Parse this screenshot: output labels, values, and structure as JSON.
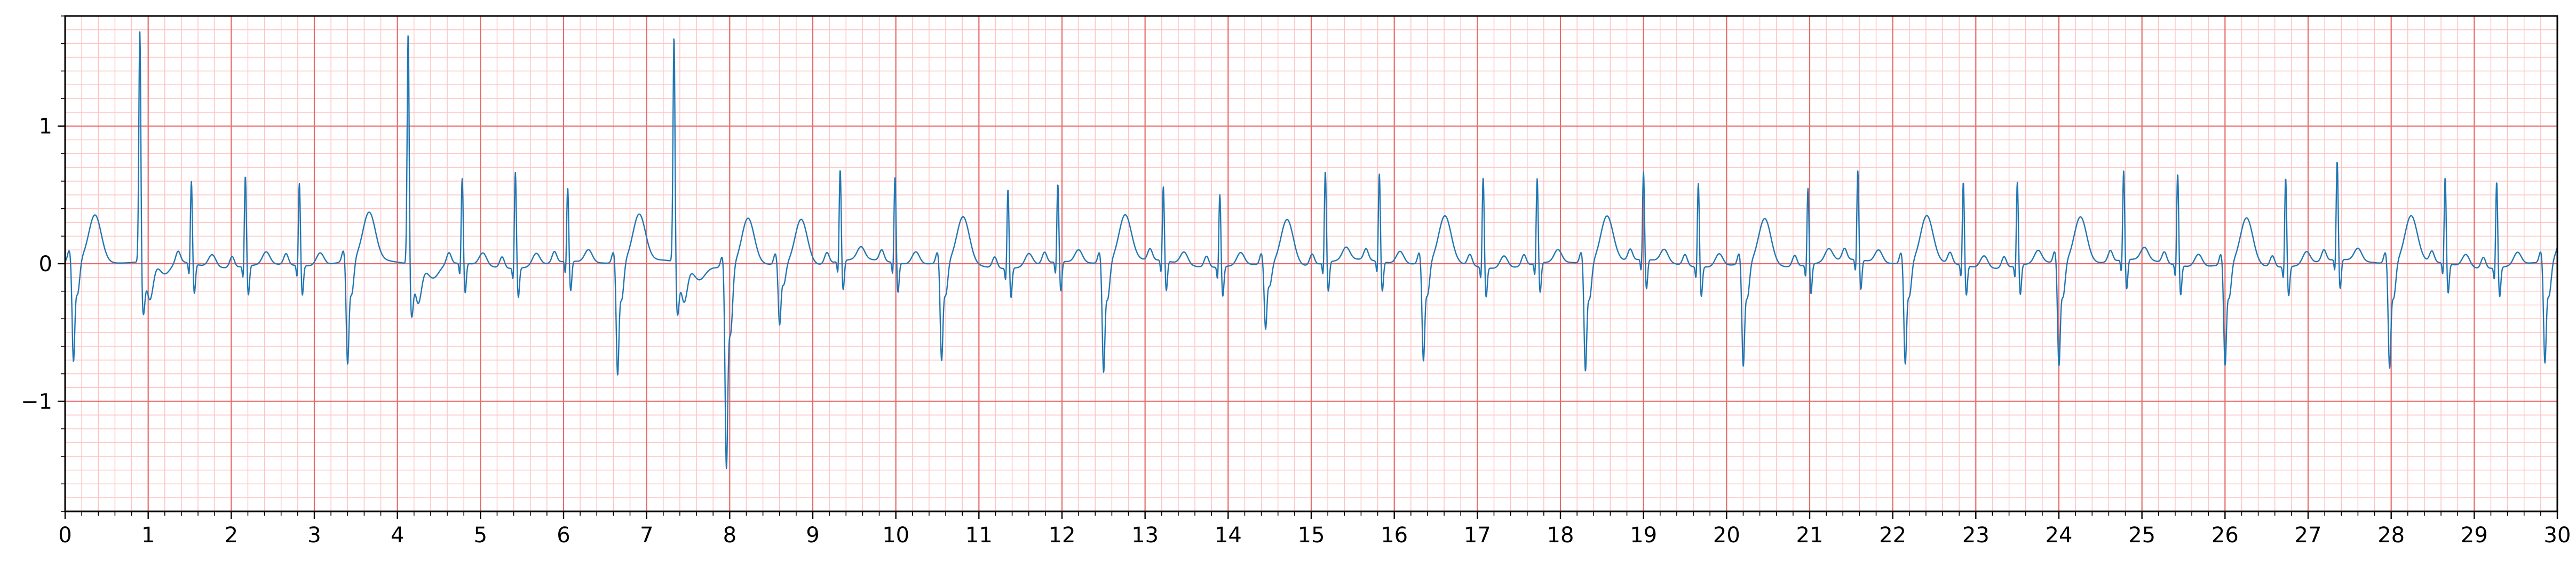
{
  "chart_data": {
    "type": "line",
    "title": "",
    "xlabel": "",
    "ylabel": "",
    "xlim": [
      0,
      30
    ],
    "ylim": [
      -1.8,
      1.8
    ],
    "x_ticks": [
      0,
      1,
      2,
      3,
      4,
      5,
      6,
      7,
      8,
      9,
      10,
      11,
      12,
      13,
      14,
      15,
      16,
      17,
      18,
      19,
      20,
      21,
      22,
      23,
      24,
      25,
      26,
      27,
      28,
      29,
      30
    ],
    "x_tick_labels": [
      "0",
      "1",
      "2",
      "3",
      "4",
      "5",
      "6",
      "7",
      "8",
      "9",
      "10",
      "11",
      "12",
      "13",
      "14",
      "15",
      "16",
      "17",
      "18",
      "19",
      "20",
      "21",
      "22",
      "23",
      "24",
      "25",
      "26",
      "27",
      "28",
      "29",
      "30"
    ],
    "y_ticks": [
      -1,
      0,
      1
    ],
    "y_tick_labels": [
      "−1",
      "0",
      "1"
    ],
    "grid": true,
    "grid_major_color": "#e86a6a",
    "grid_minor_color": "#ffc2c2",
    "line_color": "#1f77b4",
    "series": [
      {
        "beats": [
          {
            "t": 0.1,
            "type": "pvc",
            "amp": -0.7
          },
          {
            "t": 0.9,
            "type": "ectopic",
            "amp": 1.72
          },
          {
            "t": 1.52,
            "type": "normal",
            "amp": 0.61
          },
          {
            "t": 2.17,
            "type": "normal",
            "amp": 0.67
          },
          {
            "t": 2.82,
            "type": "normal",
            "amp": 0.61
          },
          {
            "t": 3.4,
            "type": "pvc",
            "amp": -0.72
          },
          {
            "t": 4.13,
            "type": "ectopic",
            "amp": 1.72
          },
          {
            "t": 4.78,
            "type": "normal",
            "amp": 0.63
          },
          {
            "t": 5.42,
            "type": "normal",
            "amp": 0.71
          },
          {
            "t": 6.05,
            "type": "normal",
            "amp": 0.55
          },
          {
            "t": 6.65,
            "type": "pvc",
            "amp": -0.78
          },
          {
            "t": 7.33,
            "type": "ectopic",
            "amp": 1.68
          },
          {
            "t": 7.96,
            "type": "pvc",
            "amp": -1.4
          },
          {
            "t": 8.6,
            "type": "pvc",
            "amp": -0.42
          },
          {
            "t": 9.33,
            "type": "normal",
            "amp": 0.68
          },
          {
            "t": 9.99,
            "type": "normal",
            "amp": 0.64
          },
          {
            "t": 10.55,
            "type": "pvc",
            "amp": -0.68
          },
          {
            "t": 11.35,
            "type": "normal",
            "amp": 0.59
          },
          {
            "t": 11.95,
            "type": "normal",
            "amp": 0.58
          },
          {
            "t": 12.5,
            "type": "pvc",
            "amp": -0.76
          },
          {
            "t": 13.22,
            "type": "normal",
            "amp": 0.55
          },
          {
            "t": 13.9,
            "type": "normal",
            "amp": 0.54
          },
          {
            "t": 14.45,
            "type": "pvc",
            "amp": -0.45
          },
          {
            "t": 15.17,
            "type": "normal",
            "amp": 0.68
          },
          {
            "t": 15.82,
            "type": "normal",
            "amp": 0.65
          },
          {
            "t": 16.35,
            "type": "pvc",
            "amp": -0.68
          },
          {
            "t": 17.07,
            "type": "normal",
            "amp": 0.67
          },
          {
            "t": 17.72,
            "type": "normal",
            "amp": 0.63
          },
          {
            "t": 18.3,
            "type": "pvc",
            "amp": -0.75
          },
          {
            "t": 19.0,
            "type": "normal",
            "amp": 0.65
          },
          {
            "t": 19.66,
            "type": "normal",
            "amp": 0.62
          },
          {
            "t": 20.2,
            "type": "pvc",
            "amp": -0.71
          },
          {
            "t": 20.98,
            "type": "normal",
            "amp": 0.57
          },
          {
            "t": 21.58,
            "type": "normal",
            "amp": 0.66
          },
          {
            "t": 22.15,
            "type": "pvc",
            "amp": -0.7
          },
          {
            "t": 22.85,
            "type": "normal",
            "amp": 0.62
          },
          {
            "t": 23.5,
            "type": "normal",
            "amp": 0.62
          },
          {
            "t": 24.0,
            "type": "pvc",
            "amp": -0.72
          },
          {
            "t": 24.78,
            "type": "normal",
            "amp": 0.66
          },
          {
            "t": 25.43,
            "type": "normal",
            "amp": 0.68
          },
          {
            "t": 26.0,
            "type": "pvc",
            "amp": -0.7
          },
          {
            "t": 26.73,
            "type": "normal",
            "amp": 0.66
          },
          {
            "t": 27.35,
            "type": "normal",
            "amp": 0.73
          },
          {
            "t": 27.98,
            "type": "pvc",
            "amp": -0.73
          },
          {
            "t": 28.65,
            "type": "normal",
            "amp": 0.64
          },
          {
            "t": 29.27,
            "type": "normal",
            "amp": 0.64
          },
          {
            "t": 29.85,
            "type": "pvc",
            "amp": -0.7
          }
        ]
      }
    ]
  }
}
